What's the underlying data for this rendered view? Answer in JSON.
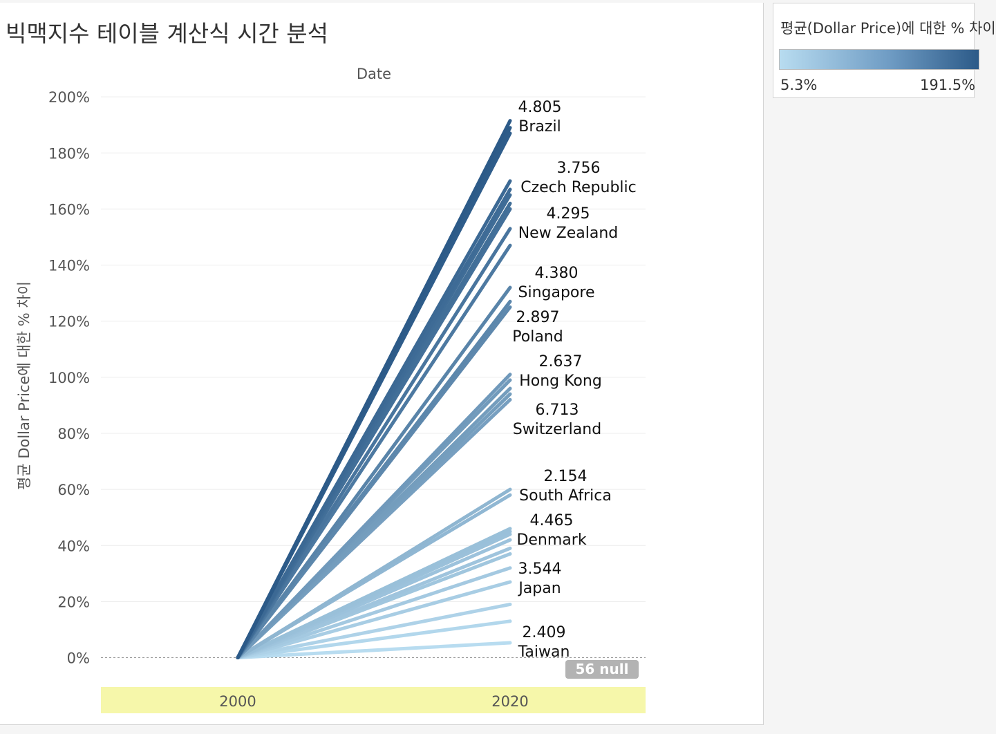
{
  "title": "빅맥지수 테이블 계산식 시간 분석",
  "legend": {
    "title": "평균(Dollar Price)에 대한 % 차이",
    "min_label": "5.3%",
    "max_label": "191.5%",
    "color_low": "#b8dcf0",
    "color_high": "#2c5a88"
  },
  "null_badge": "56 null",
  "chart_data": {
    "type": "line",
    "column_header": "Date",
    "ylabel": "평균 Dollar Price에 대한 % 차이",
    "x": [
      "2000",
      "2020"
    ],
    "ylim": [
      -8,
      202
    ],
    "yticks": [
      "0%",
      "20%",
      "40%",
      "60%",
      "80%",
      "100%",
      "120%",
      "140%",
      "160%",
      "180%",
      "200%"
    ],
    "ytick_values": [
      0,
      20,
      40,
      60,
      80,
      100,
      120,
      140,
      160,
      180,
      200
    ],
    "grid": true,
    "series_end_values": [
      191.5,
      189,
      187,
      170,
      167,
      165,
      162,
      160,
      153,
      147,
      132,
      127,
      125,
      101,
      99,
      96,
      94,
      92,
      60,
      58,
      46,
      45,
      44,
      42,
      39,
      37,
      32,
      27,
      19,
      13,
      5.3
    ],
    "labeled": [
      {
        "value": "4.805",
        "country": "Brazil"
      },
      {
        "value": "3.756",
        "country": "Czech Republic"
      },
      {
        "value": "4.295",
        "country": "New Zealand"
      },
      {
        "value": "4.380",
        "country": "Singapore"
      },
      {
        "value": "2.897",
        "country": "Poland"
      },
      {
        "value": "2.637",
        "country": "Hong Kong"
      },
      {
        "value": "6.713",
        "country": "Switzerland"
      },
      {
        "value": "2.154",
        "country": "South Africa"
      },
      {
        "value": "4.465",
        "country": "Denmark"
      },
      {
        "value": "3.544",
        "country": "Japan"
      },
      {
        "value": "2.409",
        "country": "Taiwan"
      }
    ]
  }
}
